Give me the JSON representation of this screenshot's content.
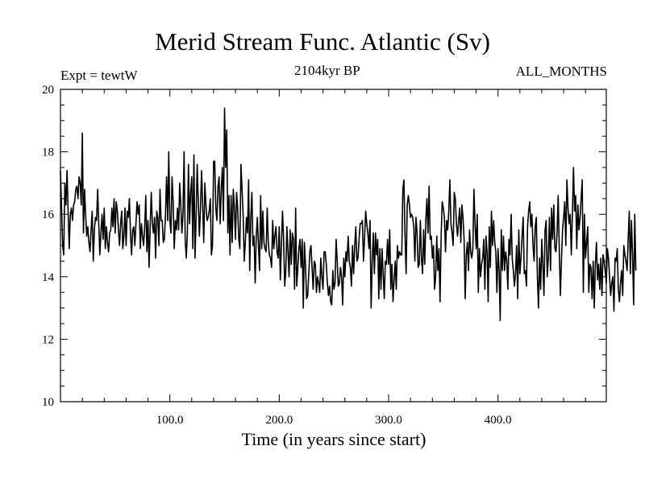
{
  "chart_data": {
    "type": "line",
    "title": "Merid Stream Func. Atlantic (Sv)",
    "subtitle_left": "Expt = tewtW",
    "subtitle_center": "2104kyr BP",
    "subtitle_right": "ALL_MONTHS",
    "xlabel": "Time (in years since start)",
    "ylabel": "",
    "xlim": [
      0,
      499
    ],
    "ylim": [
      10,
      20
    ],
    "x_ticks": [
      100,
      200,
      300,
      400
    ],
    "x_tick_labels": [
      "100.0",
      "200.0",
      "300.0",
      "400.0"
    ],
    "y_ticks": [
      10,
      12,
      14,
      16,
      18,
      20
    ],
    "y_tick_labels": [
      "10",
      "12",
      "14",
      "16",
      "18",
      "20"
    ],
    "grid": false,
    "series": [
      {
        "name": "Merid Stream Func. Atlantic",
        "x_start": 0,
        "x_step": 1,
        "values": [
          17.4,
          16.2,
          15.0,
          14.7,
          17.0,
          16.3,
          17.4,
          16.1,
          14.9,
          16.0,
          16.2,
          15.8,
          16.3,
          16.4,
          16.8,
          16.9,
          16.5,
          17.2,
          17.0,
          16.3,
          18.6,
          15.4,
          16.8,
          16.0,
          15.3,
          15.6,
          15.1,
          14.8,
          15.5,
          16.1,
          14.5,
          15.5,
          15.9,
          15.8,
          16.8,
          15.7,
          14.7,
          15.4,
          16.0,
          15.2,
          16.2,
          14.9,
          15.6,
          15.1,
          14.8,
          15.4,
          15.5,
          16.2,
          15.6,
          16.5,
          15.4,
          16.4,
          16.1,
          15.5,
          15.0,
          15.7,
          16.1,
          14.9,
          15.3,
          16.2,
          15.0,
          16.1,
          15.9,
          16.5,
          15.4,
          14.7,
          15.5,
          15.6,
          15.0,
          15.7,
          16.4,
          16.0,
          16.3,
          14.9,
          15.7,
          15.3,
          15.0,
          15.6,
          16.6,
          14.8,
          15.8,
          14.3,
          15.6,
          16.7,
          15.7,
          15.4,
          15.9,
          14.6,
          16.1,
          15.9,
          15.0,
          16.8,
          15.8,
          15.8,
          15.1,
          15.2,
          16.0,
          17.2,
          15.8,
          18.0,
          15.8,
          15.4,
          17.2,
          16.4,
          14.9,
          15.8,
          15.5,
          16.2,
          15.5,
          17.0,
          16.3,
          15.4,
          16.0,
          18.0,
          15.2,
          14.6,
          15.4,
          17.6,
          15.7,
          16.7,
          17.2,
          14.9,
          17.9,
          14.6,
          15.9,
          17.6,
          16.4,
          15.3,
          16.2,
          17.4,
          16.3,
          15.1,
          17.0,
          16.3,
          15.8,
          15.9,
          16.1,
          16.5,
          14.7,
          15.0,
          17.7,
          17.7,
          16.2,
          15.8,
          16.9,
          17.2,
          15.7,
          16.8,
          17.5,
          15.8,
          19.4,
          17.5,
          18.7,
          15.4,
          16.6,
          14.7,
          16.6,
          15.1,
          16.8,
          16.2,
          15.2,
          16.7,
          16.2,
          15.2,
          14.9,
          17.6,
          16.8,
          16.0,
          14.5,
          15.1,
          15.9,
          15.4,
          17.1,
          14.2,
          15.9,
          16.7,
          15.0,
          15.3,
          13.8,
          15.3,
          15.9,
          15.0,
          14.2,
          16.6,
          14.9,
          16.1,
          15.1,
          14.9,
          14.8,
          16.2,
          15.1,
          14.7,
          14.6,
          14.3,
          15.8,
          14.9,
          15.3,
          15.6,
          14.8,
          14.6,
          15.6,
          13.9,
          15.0,
          16.1,
          15.2,
          13.7,
          14.2,
          15.6,
          14.8,
          14.0,
          15.5,
          14.4,
          15.4,
          15.2,
          13.6,
          16.2,
          13.7,
          14.3,
          14.9,
          15.2,
          14.3,
          15.2,
          13.0,
          15.1,
          14.4,
          13.3,
          13.4,
          14.1,
          14.8,
          15.0,
          14.3,
          13.6,
          14.5,
          14.4,
          13.5,
          14.0,
          13.8,
          13.5,
          14.6,
          14.0,
          13.6,
          14.8,
          14.8,
          14.4,
          13.8,
          13.4,
          13.7,
          13.2,
          13.1,
          14.2,
          13.6,
          13.8,
          15.2,
          14.5,
          13.7,
          13.8,
          14.3,
          14.0,
          13.1,
          14.6,
          14.0,
          14.8,
          14.5,
          15.3,
          14.5,
          14.3,
          13.7,
          15.0,
          14.1,
          15.0,
          15.6,
          14.5,
          14.6,
          15.2,
          15.7,
          15.7,
          15.8,
          14.5,
          15.2,
          16.1,
          15.7,
          15.4,
          14.9,
          15.8,
          13.0,
          14.5,
          15.4,
          14.1,
          15.4,
          14.7,
          15.2,
          13.3,
          14.9,
          13.6,
          14.9,
          14.1,
          13.3,
          14.5,
          14.4,
          15.2,
          14.4,
          15.5,
          13.6,
          14.4,
          13.2,
          13.9,
          14.5,
          13.6,
          15.0,
          14.6,
          14.8,
          14.7,
          14.7,
          16.8,
          17.1,
          15.3,
          14.1,
          16.3,
          16.6,
          16.3,
          15.9,
          16.0,
          15.9,
          15.6,
          14.5,
          15.9,
          15.4,
          14.3,
          14.4,
          15.8,
          14.6,
          14.1,
          15.5,
          14.4,
          15.8,
          16.5,
          15.4,
          16.9,
          15.2,
          15.3,
          14.6,
          15.0,
          13.6,
          14.0,
          15.3,
          14.2,
          14.9,
          13.2,
          15.3,
          16.4,
          16.2,
          15.9,
          14.8,
          15.8,
          15.5,
          16.1,
          17.1,
          15.7,
          15.4,
          15.0,
          16.7,
          16.5,
          15.7,
          15.3,
          15.8,
          16.2,
          15.1,
          16.3,
          15.9,
          15.2,
          13.3,
          14.7,
          15.1,
          14.2,
          15.5,
          14.8,
          14.6,
          14.9,
          16.8,
          15.7,
          14.9,
          16.0,
          13.5,
          14.9,
          14.0,
          14.4,
          14.6,
          15.2,
          13.6,
          15.3,
          14.8,
          13.2,
          15.6,
          14.3,
          16.1,
          15.0,
          15.8,
          15.1,
          14.8,
          13.5,
          14.9,
          14.2,
          12.6,
          15.5,
          14.2,
          15.3,
          14.2,
          14.8,
          14.5,
          13.6,
          15.2,
          14.7,
          16.0,
          14.6,
          14.2,
          13.7,
          14.1,
          15.0,
          13.3,
          15.5,
          14.1,
          14.6,
          15.3,
          15.9,
          14.1,
          14.2,
          13.7,
          15.6,
          16.1,
          16.4,
          15.6,
          16.0,
          15.0,
          14.5,
          15.6,
          15.9,
          14.0,
          13.0,
          14.6,
          13.6,
          15.2,
          14.4,
          13.4,
          15.5,
          15.8,
          14.0,
          14.6,
          15.9,
          14.2,
          16.2,
          15.2,
          16.3,
          14.9,
          14.8,
          15.4,
          16.6,
          14.9,
          13.4,
          14.5,
          15.5,
          15.9,
          16.4,
          15.0,
          17.1,
          16.2,
          15.7,
          16.0,
          14.7,
          16.0,
          17.5,
          16.1,
          16.6,
          14.9,
          16.3,
          15.5,
          15.9,
          16.5,
          17.1,
          13.5,
          16.0,
          14.6,
          15.1,
          15.6,
          13.5,
          14.4,
          14.3,
          13.3,
          14.5,
          13.0,
          14.4,
          15.1,
          13.9,
          14.4,
          13.6,
          14.6,
          13.4,
          14.7,
          14.5,
          14.2,
          13.8,
          14.9,
          14.6,
          14.0,
          13.4,
          13.8,
          14.0,
          12.9,
          14.6,
          14.5,
          14.9,
          13.6,
          13.2,
          13.8,
          14.2,
          13.4,
          15.0,
          14.7,
          14.5,
          14.2,
          15.2,
          16.1,
          14.1,
          15.8,
          14.7,
          13.1,
          16.0,
          14.2
        ]
      }
    ]
  }
}
